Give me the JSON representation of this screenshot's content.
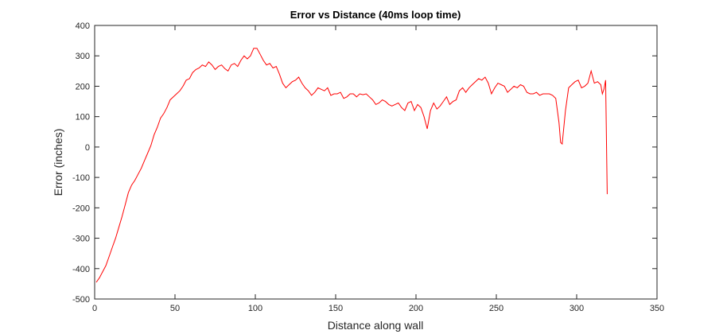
{
  "chart_data": {
    "type": "line",
    "title": "Error vs Distance (40ms loop time)",
    "xlabel": "Distance along wall",
    "ylabel": "Error (inches)",
    "xlim": [
      0,
      350
    ],
    "ylim": [
      -500,
      400
    ],
    "xticks": [
      0,
      50,
      100,
      150,
      200,
      250,
      300,
      350
    ],
    "yticks": [
      400,
      300,
      200,
      100,
      0,
      -100,
      -200,
      -300,
      -400,
      -500
    ],
    "grid": false,
    "legend": "none",
    "series": [
      {
        "color": "#ff0000",
        "x": [
          1,
          3,
          5,
          7,
          9,
          11,
          13,
          15,
          17,
          19,
          21,
          23,
          25,
          27,
          29,
          31,
          33,
          35,
          37,
          39,
          41,
          43,
          45,
          47,
          49,
          51,
          53,
          55,
          57,
          59,
          61,
          63,
          65,
          67,
          69,
          71,
          73,
          75,
          77,
          79,
          81,
          83,
          85,
          87,
          89,
          91,
          93,
          95,
          97,
          99,
          101,
          103,
          105,
          107,
          109,
          111,
          113,
          115,
          117,
          119,
          121,
          123,
          125,
          127,
          129,
          131,
          133,
          135,
          137,
          139,
          141,
          143,
          145,
          147,
          149,
          151,
          153,
          155,
          157,
          159,
          161,
          163,
          165,
          167,
          169,
          171,
          173,
          175,
          177,
          179,
          181,
          183,
          185,
          187,
          189,
          191,
          193,
          195,
          197,
          199,
          201,
          203,
          205,
          207,
          209,
          211,
          213,
          215,
          217,
          219,
          221,
          223,
          225,
          227,
          229,
          231,
          233,
          235,
          237,
          239,
          241,
          243,
          245,
          247,
          249,
          251,
          253,
          255,
          257,
          259,
          261,
          263,
          265,
          267,
          269,
          271,
          273,
          275,
          277,
          279,
          281,
          283,
          285,
          287,
          289,
          290,
          291,
          293,
          295,
          297,
          299,
          301,
          303,
          305,
          307,
          309,
          311,
          313,
          315,
          316,
          317,
          318,
          319
        ],
        "y": [
          -445,
          -430,
          -410,
          -390,
          -360,
          -330,
          -300,
          -265,
          -230,
          -190,
          -150,
          -125,
          -110,
          -90,
          -70,
          -45,
          -20,
          5,
          40,
          65,
          95,
          110,
          130,
          155,
          165,
          175,
          185,
          200,
          220,
          225,
          245,
          255,
          260,
          270,
          265,
          280,
          270,
          255,
          265,
          270,
          258,
          250,
          270,
          275,
          265,
          285,
          300,
          290,
          300,
          325,
          325,
          305,
          285,
          270,
          275,
          260,
          265,
          240,
          210,
          195,
          205,
          215,
          220,
          230,
          210,
          195,
          185,
          170,
          180,
          195,
          190,
          185,
          195,
          170,
          175,
          175,
          180,
          160,
          165,
          175,
          175,
          165,
          175,
          172,
          175,
          165,
          155,
          140,
          145,
          155,
          150,
          140,
          135,
          140,
          145,
          130,
          120,
          145,
          150,
          120,
          140,
          130,
          100,
          60,
          120,
          145,
          125,
          135,
          150,
          165,
          140,
          150,
          155,
          185,
          195,
          180,
          195,
          205,
          215,
          225,
          220,
          230,
          210,
          175,
          195,
          210,
          205,
          200,
          180,
          190,
          200,
          195,
          205,
          200,
          180,
          175,
          175,
          180,
          170,
          175,
          175,
          175,
          170,
          160,
          80,
          15,
          10,
          120,
          195,
          205,
          215,
          220,
          195,
          200,
          210,
          250,
          210,
          215,
          205,
          175,
          190,
          220,
          -155
        ]
      }
    ]
  }
}
